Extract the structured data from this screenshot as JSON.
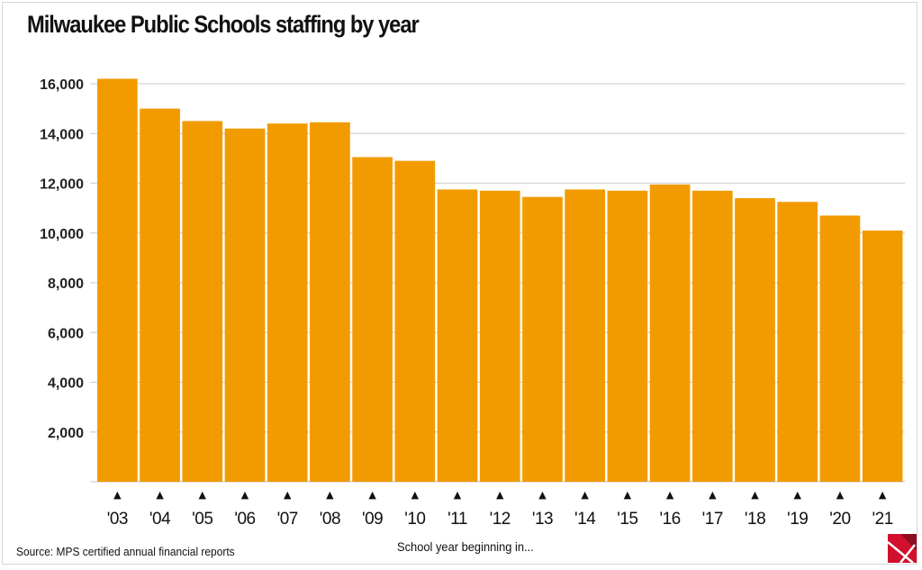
{
  "chart_data": {
    "type": "bar",
    "title": "Milwaukee Public Schools staffing by year",
    "xlabel": "School year beginning in...",
    "ylabel": "",
    "source": "Source: MPS certified annual financial reports",
    "categories": [
      "'03",
      "'04",
      "'05",
      "'06",
      "'07",
      "'08",
      "'09",
      "'10",
      "'11",
      "'12",
      "'13",
      "'14",
      "'15",
      "'16",
      "'17",
      "'18",
      "'19",
      "'20",
      "'21"
    ],
    "values": [
      16200,
      15000,
      14500,
      14200,
      14400,
      14450,
      13050,
      12900,
      11750,
      11700,
      11450,
      11750,
      11700,
      11950,
      11700,
      11400,
      11250,
      10700,
      10100
    ],
    "ylim": [
      0,
      17000
    ],
    "yticks": [
      2000,
      4000,
      6000,
      8000,
      10000,
      12000,
      14000,
      16000
    ],
    "ytick_labels": [
      "2,000",
      "4,000",
      "6,000",
      "8,000",
      "10,000",
      "12,000",
      "14,000",
      "16,000"
    ],
    "grid": true,
    "bar_color": "#f29b00",
    "tick_marker": "▲"
  },
  "logo": {
    "name": "Wisconsin Policy Forum logo",
    "color": "#d0102d"
  }
}
